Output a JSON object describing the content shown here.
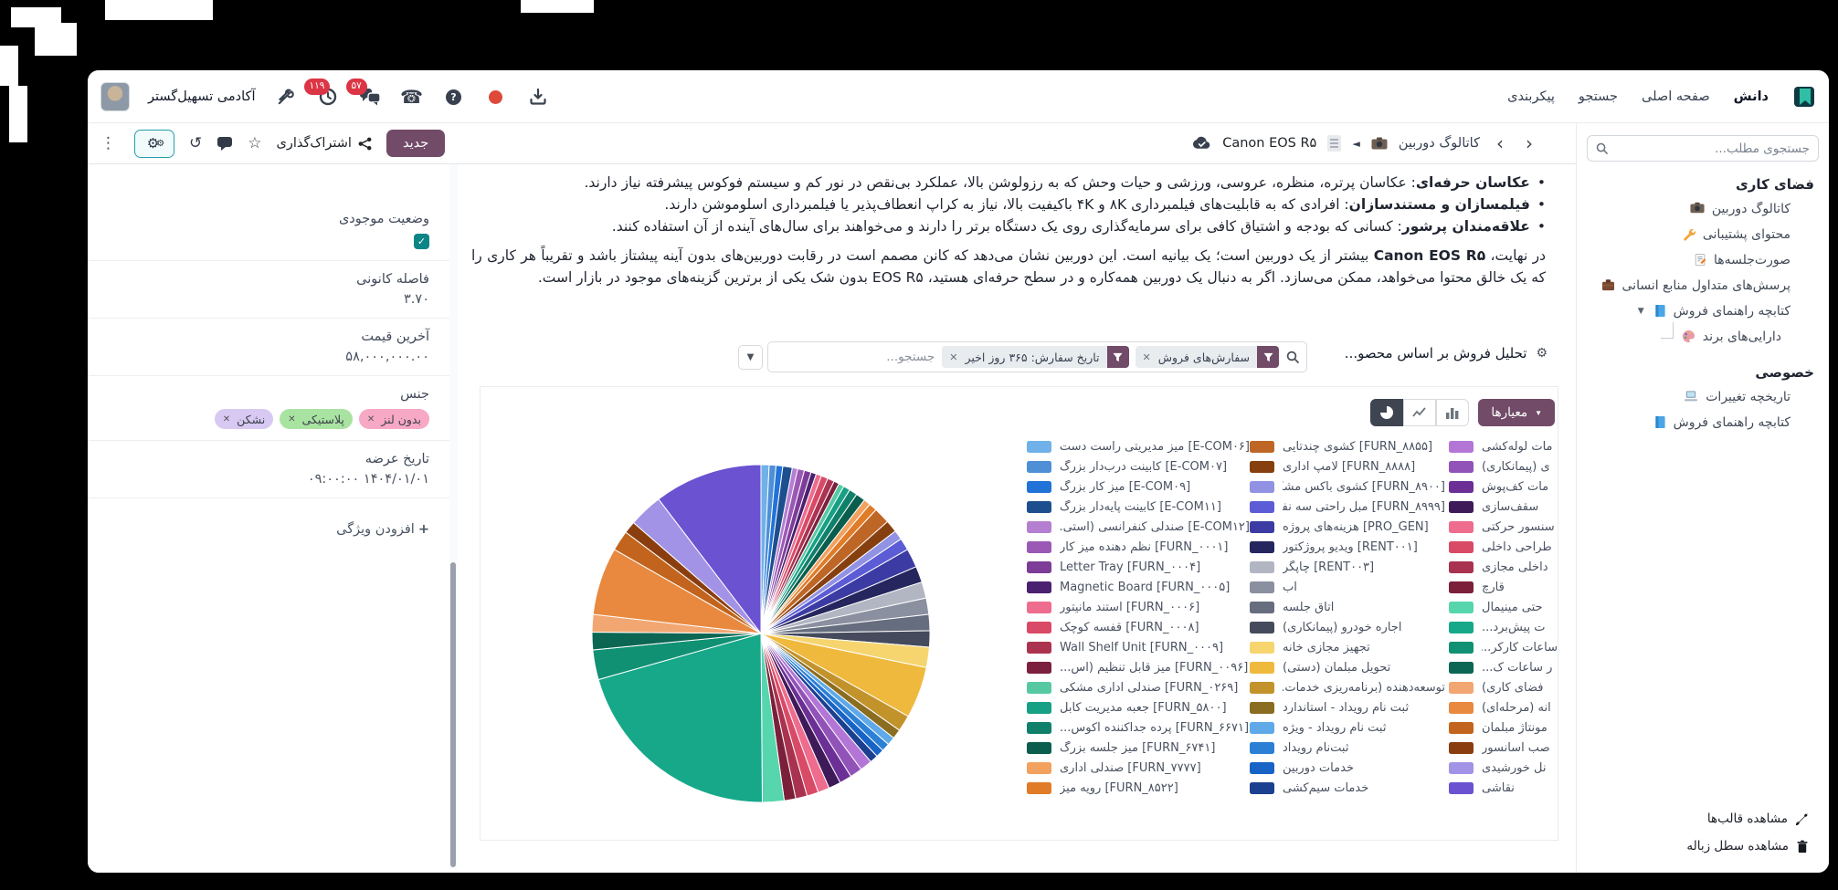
{
  "topbar": {
    "org_name": "آکادمی تسهیل‌گستر",
    "badge_activities": "۱۱۹",
    "badge_messages": "۵۷",
    "menu": {
      "app": "دانش",
      "home": "صفحه اصلی",
      "search": "جستجو",
      "config": "پیکربندی"
    }
  },
  "toolbar": {
    "new": "جدید",
    "share": "اشتراک‌گذاری"
  },
  "breadcrumb": {
    "current": "Canon EOS R۵",
    "parent": "کاتالوگ دوربین"
  },
  "properties": {
    "stock": {
      "label": "وضعیت موجودی",
      "checked": true
    },
    "focal": {
      "label": "فاصله کانونی",
      "value": "۳.۷۰"
    },
    "price": {
      "label": "آخرین قیمت",
      "value": "۵۸,۰۰۰,۰۰۰.۰۰"
    },
    "material": {
      "label": "جنس",
      "tags": [
        {
          "label": "بدون لنز",
          "bg": "#F7A8C5"
        },
        {
          "label": "پلاستیکی",
          "bg": "#A9E3A1"
        },
        {
          "label": "نشکن",
          "bg": "#D8C9F2"
        }
      ]
    },
    "release": {
      "label": "تاریخ عرضه",
      "value": "۱۴۰۴/۰۱/۰۱ ۰۹:۰۰:۰۰"
    },
    "add_property": "افزودن ویژگی"
  },
  "article": {
    "bullets": [
      {
        "lead": "عکاسان حرفه‌ای",
        "body": ": عکاسان پرتره، منظره، عروسی، ورزشی و حیات وحش که به رزولوشن بالا، عملکرد بی‌نقص در نور کم و سیستم فوکوس پیشرفته نیاز دارند."
      },
      {
        "lead": "فیلمسازان و مستندسازان",
        "body": ": افرادی که به قابلیت‌های فیلمبرداری ۸K و ۴K باکیفیت بالا، نیاز به کراپ انعطاف‌پذیر یا فیلمبرداری اسلوموشن دارند."
      },
      {
        "lead": "علاقه‌مندان پرشور",
        "body": ": کسانی که بودجه و اشتیاق کافی برای سرمایه‌گذاری روی یک دستگاه برتر را دارند و می‌خواهند برای سال‌های آینده از آن استفاده کنند."
      }
    ],
    "closing": {
      "pre": "در نهایت، ",
      "bold": "Canon EOS R۵",
      "post": " بیشتر از یک دوربین است؛ یک بیانیه است. این دوربین نشان می‌دهد که کانن مصمم است در رقابت دوربین‌های بدون آینه پیشتاز باشد و تقریباً هر کاری را که یک خالق محتوا می‌خواهد، ممکن می‌سازد. اگر به دنبال یک دوربین همه‌کاره و در سطح حرفه‌ای هستید، EOS R۵ بدون شک یکی از برترین گزینه‌های موجود در بازار است."
    }
  },
  "embedded_view": {
    "title": "تحلیل فروش بر اساس محصو...",
    "search_placeholder": "جستجو...",
    "filters": [
      {
        "label": "سفارش‌های فروش"
      },
      {
        "label": "تاریخ سفارش: ۳۶۵ روز اخیر"
      }
    ],
    "measures": "معیارها"
  },
  "chart_data": {
    "type": "pie",
    "title": "تحلیل فروش بر اساس محصو...",
    "legend_position": "right",
    "legend_columns": 3,
    "slices": [
      {
        "label": "[E-COM۰۶] میز مدیریتی راست دست",
        "color": "#6FB1E8",
        "value": 0.6
      },
      {
        "label": "[E-COM۰۷] کابینت درب‌دار بزرگ",
        "color": "#4E8FD6",
        "value": 0.5
      },
      {
        "label": "[E-COM۰۹] میز کار بزرگ",
        "color": "#2273D8",
        "value": 0.5
      },
      {
        "label": "[E-COM۱۱] کابینت پایه‌دار بزرگ",
        "color": "#1D4F8F",
        "value": 0.7
      },
      {
        "label": "[E-COM۱۲] صندلی کنفرانسی (استی...",
        "color": "#B57FD1",
        "value": 0.4
      },
      {
        "label": "[FURN_۰۰۰۱] نظم دهنده میز کار",
        "color": "#9B59B6",
        "value": 0.5
      },
      {
        "label": "Letter Tray [FURN_۰۰۰۴]",
        "color": "#7D3C98",
        "value": 0.5
      },
      {
        "label": "Magnetic Board [FURN_۰۰۰۵]",
        "color": "#4A2070",
        "value": 0.4
      },
      {
        "label": "[FURN_۰۰۰۶] استند مانیتور",
        "color": "#EE6C8E",
        "value": 0.4
      },
      {
        "label": "[FURN_۰۰۰۸] قفسه کوچک",
        "color": "#D94A66",
        "value": 0.5
      },
      {
        "label": "Wall Shelf Unit [FURN_۰۰۰۹]",
        "color": "#AC3350",
        "value": 0.5
      },
      {
        "label": "[FURN_۰۰۹۶] میز قابل تنظیم (اس...",
        "color": "#7C2040",
        "value": 0.4
      },
      {
        "label": "[FURN_۰۲۶۹] صندلی اداری مشکی",
        "color": "#57C9A2",
        "value": 0.4
      },
      {
        "label": "[FURN_۵۸۰۰] جعبه مدیریت کابل",
        "color": "#16A085",
        "value": 0.5
      },
      {
        "label": "[FURN_۶۶۷۱] پرده جداکننده آکوس...",
        "color": "#11806B",
        "value": 0.6
      },
      {
        "label": "[FURN_۶۷۴۱] میز جلسه بزرگ",
        "color": "#0B5E4D",
        "value": 0.7
      },
      {
        "label": "[FURN_۷۷۷۷] صندلی اداری",
        "color": "#F2A15F",
        "value": 0.5
      },
      {
        "label": "[FURN_۸۵۲۲] رویه میز",
        "color": "#E07B27",
        "value": 0.6
      },
      {
        "label": "[FURN_۸۸۵۵] کشوی چندتایی",
        "color": "#BE6625",
        "value": 1.2
      },
      {
        "label": "[FURN_۸۸۸۸] لامپ اداری",
        "color": "#86400F",
        "value": 0.9
      },
      {
        "label": "[FURN_۸۹۰۰] کشوی باکس مشکی",
        "color": "#9192E3",
        "value": 0.7
      },
      {
        "label": "[FURN_۸۹۹۹] مبل راحتی سه نفره",
        "color": "#5C5CD6",
        "value": 0.9
      },
      {
        "label": "[PRO_GEN] هزینه‌های پروژه",
        "color": "#3B3BA3",
        "value": 1.4
      },
      {
        "label": "[RENT۰۰۱] ویدیو پروژکتور",
        "color": "#26265E",
        "value": 1.2
      },
      {
        "label": "[RENT۰۰۳] چاپگر",
        "color": "#B2B6C2",
        "value": 1.2
      },
      {
        "label": "آب",
        "color": "#8B90A0",
        "value": 1.2
      },
      {
        "label": "اتاق جلسه",
        "color": "#666D7E",
        "value": 1.2
      },
      {
        "label": "اجاره خودرو (پیمانکاری)",
        "color": "#454B5C",
        "value": 1.2
      },
      {
        "label": "تجهیز مجازی خانه",
        "color": "#F6D56F",
        "value": 1.5
      },
      {
        "label": "تحویل مبلمان (دستی)",
        "color": "#EFB93D",
        "value": 3.8
      },
      {
        "label": "توسعه‌دهنده (برنامه‌ریزی خدمات...",
        "color": "#C3932B",
        "value": 1.2
      },
      {
        "label": "ثبت نام رویداد - استاندارد",
        "color": "#8A6D20",
        "value": 0.7
      },
      {
        "label": "ثبت نام رویداد - ویژه",
        "color": "#5FA9E9",
        "value": 0.6
      },
      {
        "label": "ثبت‌نام رویداد",
        "color": "#2B80D5",
        "value": 0.6
      },
      {
        "label": "خدمات دوربین",
        "color": "#1763C6",
        "value": 0.6
      },
      {
        "label": "خدمات سیم‌کشی",
        "color": "#1C4090",
        "value": 0.6
      },
      {
        "label": "مات لوله‌کشی",
        "color": "#B476D6",
        "value": 0.9
      },
      {
        "label": "ی (پیمانکاری)",
        "color": "#9153B8",
        "value": 0.9
      },
      {
        "label": "مات کف‌پوش",
        "color": "#6B2F95",
        "value": 0.9
      },
      {
        "label": "سقف‌سازی",
        "color": "#3F1A59",
        "value": 0.9
      },
      {
        "label": "سنسور حرکتی",
        "color": "#EE6C8E",
        "value": 0.85
      },
      {
        "label": "طراحی داخلی",
        "color": "#D94A66",
        "value": 0.85
      },
      {
        "label": "داخلی مجازی",
        "color": "#A8324F",
        "value": 0.85
      },
      {
        "label": "قارچ",
        "color": "#7C1F3A",
        "value": 0.85
      },
      {
        "label": "حتی مینیمال",
        "color": "#57D6AE",
        "value": 1.6
      },
      {
        "label": "ت پیش‌برد...",
        "color": "#17A88A",
        "value": 16
      },
      {
        "label": "ساعات کارکر...",
        "color": "#119173",
        "value": 2.2
      },
      {
        "label": "ر ساعات ک...",
        "color": "#0B6653",
        "value": 1.3
      },
      {
        "label": "فضای کاری)",
        "color": "#F2A772",
        "value": 1.3
      },
      {
        "label": "انه (مرحله‌ای)",
        "color": "#E8893F",
        "value": 5
      },
      {
        "label": "مونتاژ مبلمان",
        "color": "#C2641D",
        "value": 1.5
      },
      {
        "label": "صب آسانسور",
        "color": "#8A3E0F",
        "value": 0.9
      },
      {
        "label": "نل خورشیدی",
        "color": "#A393E6",
        "value": 2.5
      },
      {
        "label": "نقاشی",
        "color": "#6A52D1",
        "value": 8
      }
    ]
  },
  "sidebar": {
    "search_placeholder": "جستجوی مطلب...",
    "sections": [
      {
        "title": "فضای کاری",
        "items": [
          {
            "label": "کاتالوگ دوربین",
            "icon": "camera-icon"
          },
          {
            "label": "محتوای پشتیبانی",
            "icon": "wrench-icon"
          },
          {
            "label": "صورت‌جلسه‌ها",
            "icon": "memo-icon"
          },
          {
            "label": "پرسش‌های متداول منابع انسانی",
            "icon": "briefcase-icon"
          },
          {
            "label": "کتابچه راهنمای فروش",
            "icon": "book-icon",
            "expandable": true
          },
          {
            "label": "دارایی‌های برند",
            "icon": "palette-icon",
            "child": true
          }
        ]
      },
      {
        "title": "خصوصی",
        "items": [
          {
            "label": "تاریخچه تغییرات",
            "icon": "laptop-icon"
          },
          {
            "label": "کتابچه راهنمای فروش",
            "icon": "book-icon"
          }
        ]
      }
    ],
    "footer": [
      {
        "label": "مشاهده قالب‌ها",
        "icon": "brush-icon"
      },
      {
        "label": "مشاهده سطل زباله",
        "icon": "trash-icon"
      }
    ]
  }
}
